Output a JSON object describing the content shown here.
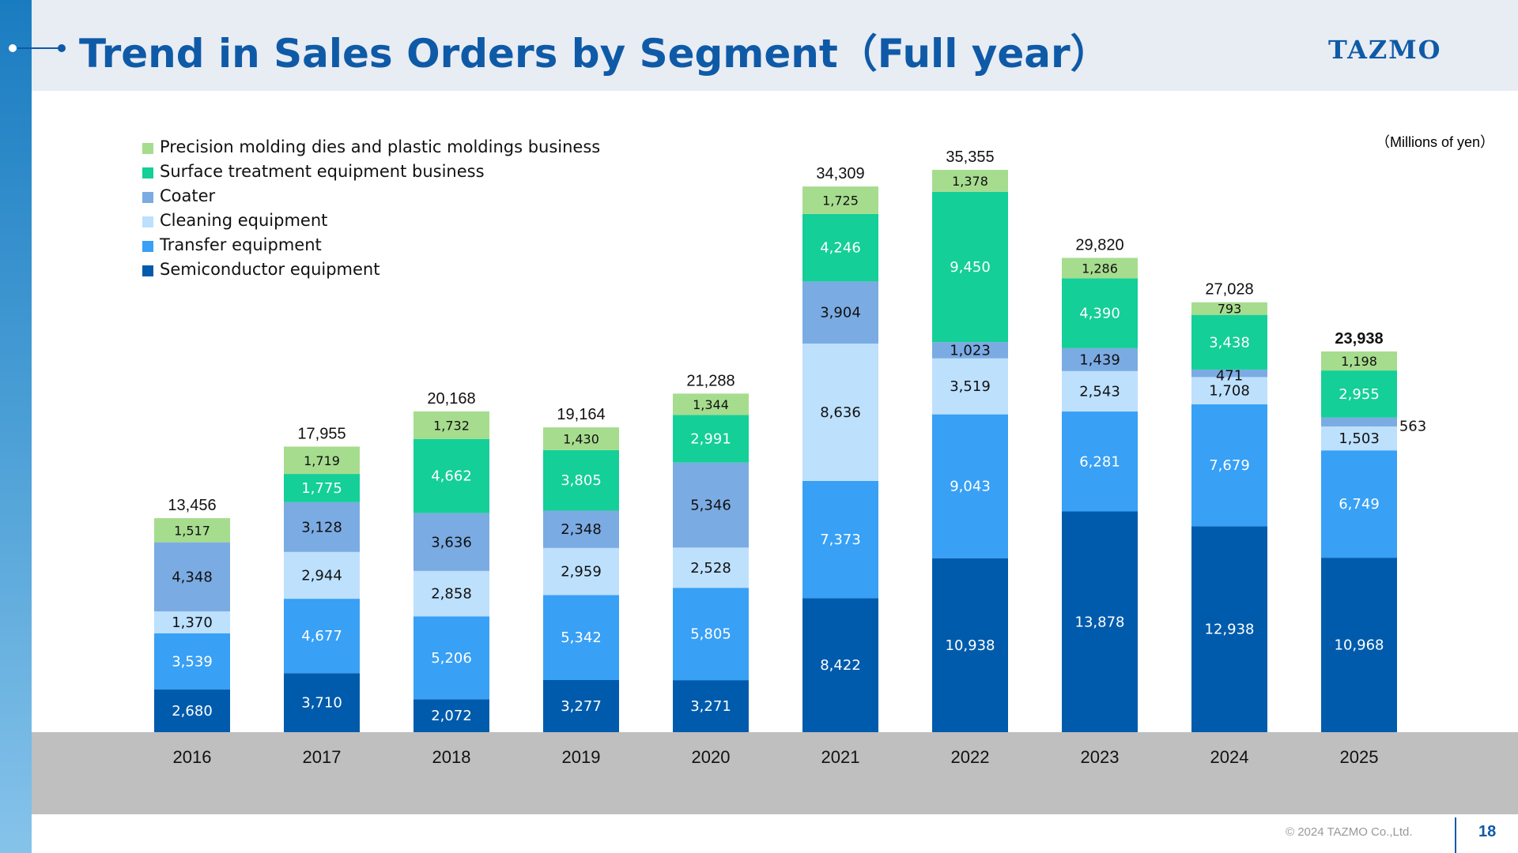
{
  "header": {
    "title": "Trend in Sales Orders by Segment（Full year）",
    "logo_text": "TAZMO"
  },
  "footer": {
    "copyright": "© 2024 TAZMO Co.,Ltd.",
    "page_number": "18"
  },
  "colors": {
    "semiconductor": "#005BAC",
    "transfer": "#38A0F5",
    "cleaning": "#BDE0FD",
    "coater": "#7BABE3",
    "surface": "#14CF97",
    "precision": "#A6DC8E",
    "axis_band": "#BFBFBF",
    "title": "#0E5AA7"
  },
  "chart_data": {
    "type": "bar",
    "stacked": true,
    "unit_label": "（Millions of yen）",
    "categories": [
      "2016",
      "2017",
      "2018",
      "2019",
      "2020",
      "2021",
      "2022",
      "2023",
      "2024",
      "2025"
    ],
    "series": [
      {
        "name": "Semiconductor equipment",
        "key": "semiconductor",
        "values": [
          2680,
          3710,
          2072,
          3277,
          3271,
          8422,
          10938,
          13878,
          12938,
          10968
        ]
      },
      {
        "name": "Transfer equipment",
        "key": "transfer",
        "values": [
          3539,
          4677,
          5206,
          5342,
          5805,
          7373,
          9043,
          6281,
          7679,
          6749
        ]
      },
      {
        "name": "Cleaning equipment",
        "key": "cleaning",
        "values": [
          1370,
          2944,
          2858,
          2959,
          2528,
          8636,
          3519,
          2543,
          1708,
          1503
        ]
      },
      {
        "name": "Coater",
        "key": "coater",
        "values": [
          4348,
          3128,
          3636,
          2348,
          5346,
          3904,
          1023,
          1439,
          471,
          563
        ]
      },
      {
        "name": "Surface treatment equipment business",
        "key": "surface",
        "values": [
          0,
          1775,
          4662,
          3805,
          2991,
          4246,
          9450,
          4390,
          3438,
          2955
        ]
      },
      {
        "name": "Precision molding dies and plastic moldings business",
        "key": "precision",
        "values": [
          1517,
          1719,
          1732,
          1430,
          1344,
          1725,
          1378,
          1286,
          793,
          1198
        ]
      }
    ],
    "value_labels": [
      [
        "2,680",
        "3,710",
        "2,072",
        "3,277",
        "3,271",
        "8,422",
        "10,938",
        "13,878",
        "12,938",
        "10,968"
      ],
      [
        "3,539",
        "4,677",
        "5,206",
        "5,342",
        "5,805",
        "7,373",
        "9,043",
        "6,281",
        "7,679",
        "6,749"
      ],
      [
        "1,370",
        "2,944",
        "2,858",
        "2,959",
        "2,528",
        "8,636",
        "3,519",
        "2,543",
        "1,708",
        "1,503"
      ],
      [
        "4,348",
        "3,128",
        "3,636",
        "2,348",
        "5,346",
        "3,904",
        "1,023",
        "1,439",
        "471",
        "563"
      ],
      [
        "",
        "1,775",
        "4,662",
        "3,805",
        "2,991",
        "4,246",
        "9,450",
        "4,390",
        "3,438",
        "2,955"
      ],
      [
        "1,517",
        "1,719",
        "1,732",
        "1,430",
        "1,344",
        "1,725",
        "1,378",
        "1,286",
        "793",
        "1,198"
      ]
    ],
    "totals": [
      13456,
      17955,
      20168,
      19164,
      21288,
      34309,
      35355,
      29820,
      27028,
      23938
    ],
    "total_labels": [
      "13,456",
      "17,955",
      "20,168",
      "19,164",
      "21,288",
      "34,309",
      "35,355",
      "29,820",
      "27,028",
      "23,938"
    ],
    "ylim": [
      0,
      35355
    ],
    "grid": false,
    "legend_position": "top-left",
    "legend_order": [
      "precision",
      "surface",
      "coater",
      "cleaning",
      "transfer",
      "semiconductor"
    ]
  }
}
